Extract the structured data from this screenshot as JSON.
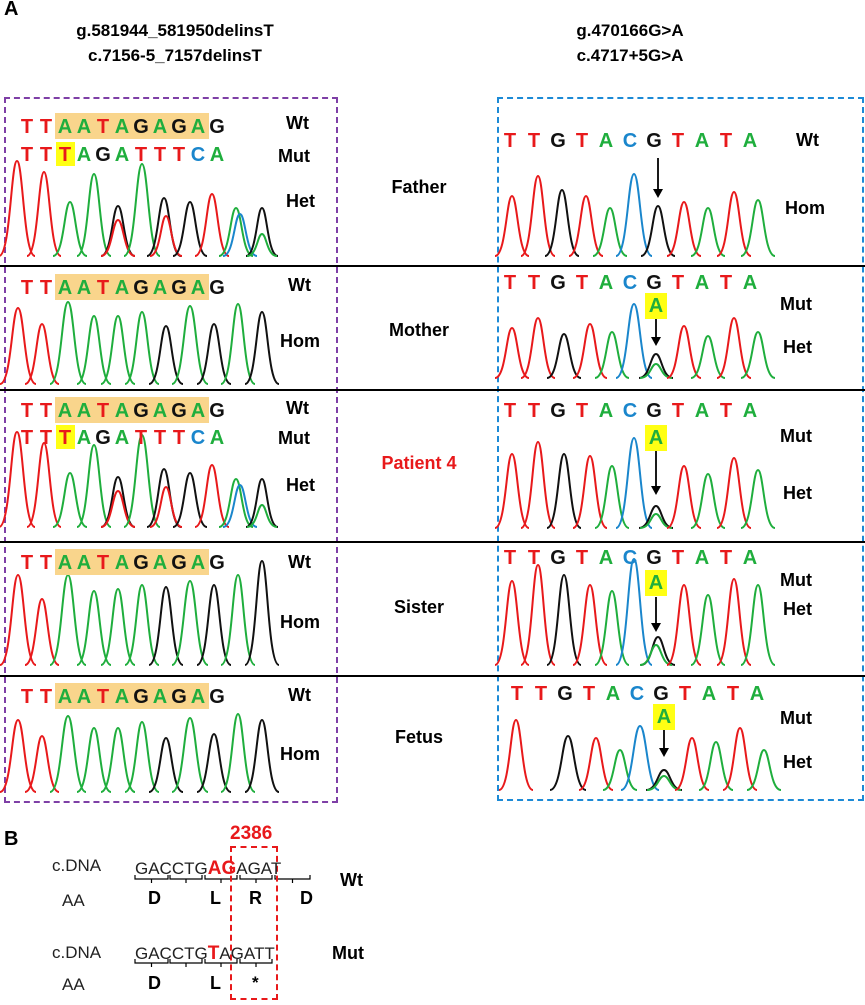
{
  "panels": {
    "a": "A",
    "b": "B"
  },
  "headers": {
    "left_line1": "g.581944_581950delinsT",
    "left_line2": "c.7156-5_7157delinsT",
    "right_line1": "g.470166G>A",
    "right_line2": "c.4717+5G>A"
  },
  "persons": [
    "Father",
    "Mother",
    "Patient 4",
    "Sister",
    "Fetus"
  ],
  "labels": {
    "wt": "Wt",
    "mut": "Mut",
    "het": "Het",
    "hom": "Hom"
  },
  "sequences": {
    "left_wt": "TTAATAGAGAG",
    "left_mut": "TTTAGATTTCA",
    "right_wt": "TTGTACGTATA",
    "right_mut": "A"
  },
  "colors": {
    "A": "#1fae3d",
    "T": "#e8191b",
    "G": "#111111",
    "C": "#1a86cc",
    "highlight": "#f9d58c",
    "yellow": "#ffff14"
  },
  "panel_b": {
    "position": "2386",
    "cdna_label": "c.DNA",
    "aa_label": "AA",
    "wt": {
      "codons": [
        "GAC",
        "CTG",
        "AGA",
        "GAT"
      ],
      "highlight": "AG",
      "aa": [
        "D",
        "L",
        "R",
        "D"
      ],
      "tag": "Wt"
    },
    "mut": {
      "codons": [
        "GAC",
        "CTG",
        "TAG",
        "ATT"
      ],
      "highlight": "T",
      "aa": [
        "D",
        "L",
        "*"
      ],
      "tag": "Mut"
    }
  }
}
